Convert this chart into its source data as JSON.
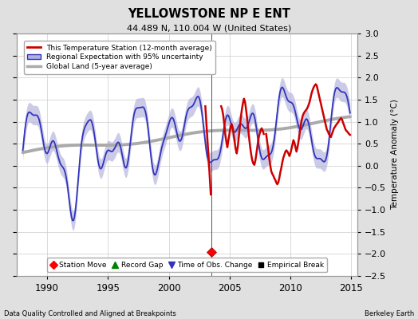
{
  "title": "YELLOWSTONE NP E ENT",
  "subtitle": "44.489 N, 110.004 W (United States)",
  "ylabel": "Temperature Anomaly (°C)",
  "xlim": [
    1987.5,
    2015.5
  ],
  "ylim": [
    -2.5,
    3.0
  ],
  "yticks": [
    -2.5,
    -2,
    -1.5,
    -1,
    -0.5,
    0,
    0.5,
    1,
    1.5,
    2,
    2.5,
    3
  ],
  "xticks": [
    1990,
    1995,
    2000,
    2005,
    2010,
    2015
  ],
  "footer_left": "Data Quality Controlled and Aligned at Breakpoints",
  "footer_right": "Berkeley Earth",
  "station_move_year": 2003.5,
  "station_move_value": -1.95,
  "bg_color": "#e0e0e0",
  "plot_bg_color": "#ffffff",
  "regional_color": "#3333bb",
  "regional_fill_color": "#b0b0dd",
  "station_color": "#cc0000",
  "global_color": "#aaaaaa",
  "grid_color": "#cccccc"
}
